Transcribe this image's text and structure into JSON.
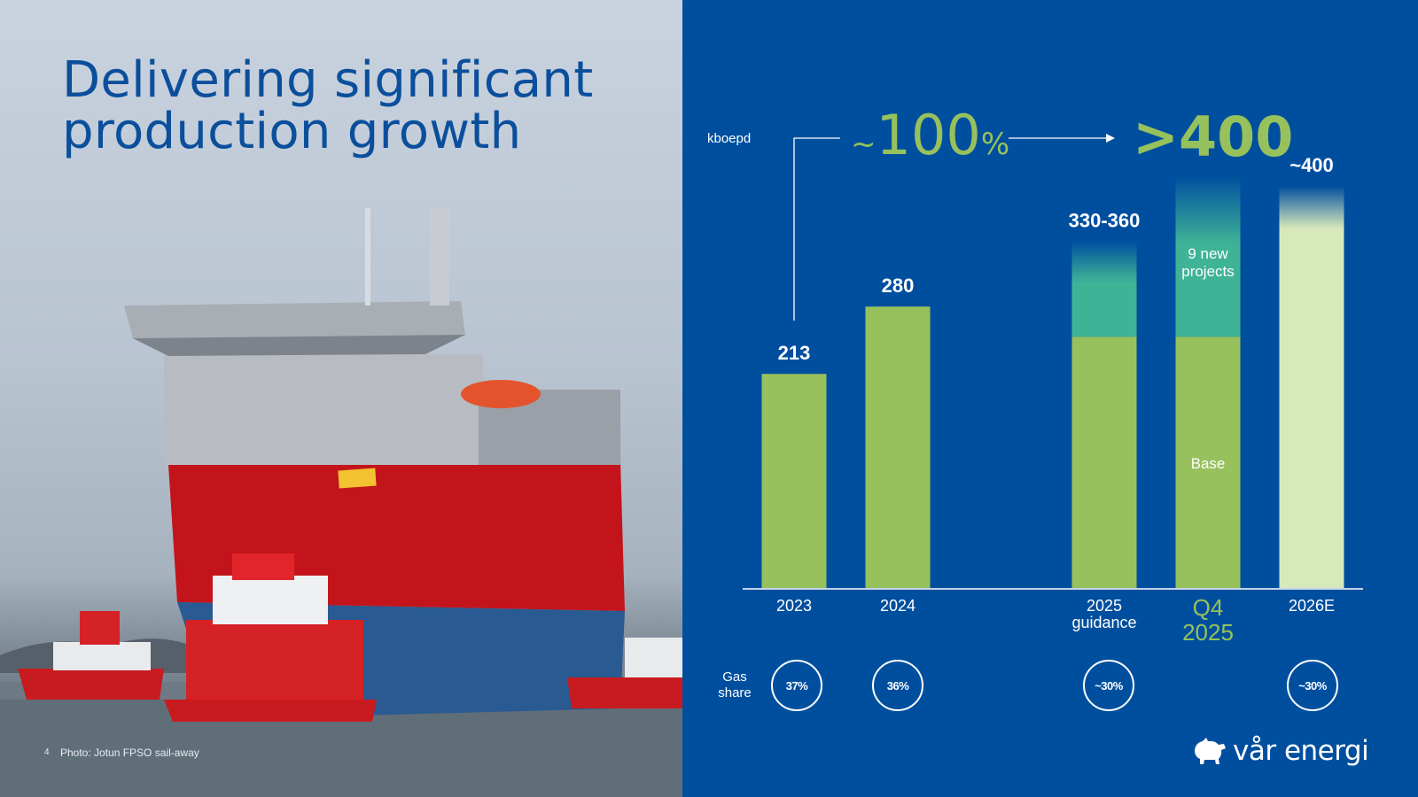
{
  "slide": {
    "title": "Delivering significant\nproduction growth",
    "page_number": "4",
    "photo_caption": "Photo: Jotun FPSO sail-away",
    "logo_text": "vår energi"
  },
  "colors": {
    "background": "#004f9f",
    "green": "#97c15c",
    "teal": "#3fb396",
    "light_green": "#d7e8bb",
    "title_blue": "#0b4f9c"
  },
  "chart_data": {
    "type": "bar",
    "unit_label": "kboepd",
    "growth_label": "~100%",
    "target_label": ">400",
    "categories": [
      "2023",
      "2024",
      "2025\nguidance",
      "Q4\n2025",
      "2026E"
    ],
    "value_labels": [
      "213",
      "280",
      "330-360",
      "",
      "~400"
    ],
    "series": [
      {
        "name": "Base",
        "values": [
          213,
          280,
          250,
          250,
          400
        ]
      },
      {
        "name": "9 new projects",
        "values": [
          0,
          0,
          95,
          160,
          0
        ]
      }
    ],
    "gas_share_label": "Gas\nshare",
    "gas_share": [
      "37%",
      "36%",
      "~30%",
      "",
      "~30%"
    ],
    "ylim": [
      0,
      420
    ]
  }
}
